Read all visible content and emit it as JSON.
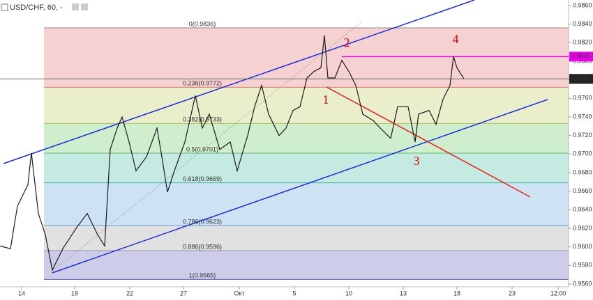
{
  "chart_data": {
    "type": "line",
    "title": "USD/CHF, 60, -",
    "x": [
      0,
      15,
      25,
      40,
      45,
      55,
      65,
      75,
      90,
      110,
      125,
      140,
      150,
      158,
      168,
      175,
      185,
      195,
      210,
      225,
      232,
      240,
      250,
      265,
      280,
      290,
      300,
      315,
      330,
      340,
      355,
      365,
      375,
      385,
      400,
      410,
      420,
      430,
      440,
      450,
      460,
      465,
      470,
      480,
      490,
      500,
      510,
      520,
      535,
      545,
      560,
      570,
      585,
      595,
      600,
      615,
      625,
      635,
      645,
      650,
      655,
      665
    ],
    "series": [
      {
        "name": "USD/CHF",
        "color": "#1a1a1a",
        "values": [
          0.9601,
          0.9598,
          0.9644,
          0.9667,
          0.9701,
          0.9636,
          0.9613,
          0.9575,
          0.9598,
          0.9621,
          0.9636,
          0.9613,
          0.9601,
          0.9705,
          0.9728,
          0.974,
          0.9713,
          0.9682,
          0.9697,
          0.9728,
          0.9697,
          0.9659,
          0.9682,
          0.9713,
          0.9763,
          0.9728,
          0.9743,
          0.9705,
          0.9713,
          0.9682,
          0.972,
          0.9751,
          0.9774,
          0.9743,
          0.972,
          0.9728,
          0.9747,
          0.9751,
          0.9782,
          0.9789,
          0.9793,
          0.9828,
          0.9782,
          0.9782,
          0.9801,
          0.9789,
          0.9774,
          0.9743,
          0.9736,
          0.9728,
          0.9717,
          0.9751,
          0.9751,
          0.9713,
          0.9743,
          0.9747,
          0.9732,
          0.9759,
          0.9774,
          0.9805,
          0.9793,
          0.9781
        ]
      }
    ],
    "xlim": [
      0,
      815
    ],
    "xticks": [
      {
        "value": 31,
        "label": "14"
      },
      {
        "value": 107,
        "label": "19"
      },
      {
        "value": 186,
        "label": "22"
      },
      {
        "value": 263,
        "label": "27"
      },
      {
        "value": 343,
        "label": "Окт"
      },
      {
        "value": 422,
        "label": "5"
      },
      {
        "value": 500,
        "label": "10"
      },
      {
        "value": 578,
        "label": "13"
      },
      {
        "value": 655,
        "label": "18"
      },
      {
        "value": 734,
        "label": "23"
      },
      {
        "value": 800,
        "label": "12:00"
      }
    ],
    "ylim": [
      0.9557,
      0.9866
    ],
    "yticks": [
      {
        "value": 0.956,
        "label": "0.9560"
      },
      {
        "value": 0.958,
        "label": "0.9580"
      },
      {
        "value": 0.96,
        "label": "0.9600"
      },
      {
        "value": 0.962,
        "label": "0.9620"
      },
      {
        "value": 0.964,
        "label": "0.9640"
      },
      {
        "value": 0.966,
        "label": "0.9660"
      },
      {
        "value": 0.968,
        "label": "0.9680"
      },
      {
        "value": 0.97,
        "label": "0.9700"
      },
      {
        "value": 0.972,
        "label": "0.9720"
      },
      {
        "value": 0.974,
        "label": "0.9740"
      },
      {
        "value": 0.976,
        "label": "0.9760"
      },
      {
        "value": 0.978,
        "label": "0.9780"
      },
      {
        "value": 0.98,
        "label": "0.9800"
      },
      {
        "value": 0.982,
        "label": "0.9820"
      },
      {
        "value": 0.984,
        "label": "0.9840"
      },
      {
        "value": 0.986,
        "label": "0.9860"
      }
    ],
    "fib_levels": [
      {
        "value": 0.9836,
        "label": "0(0.9836)",
        "color": "#888888"
      },
      {
        "value": 0.9772,
        "label": "0.236(0.9772)",
        "color": "#e06666"
      },
      {
        "value": 0.9733,
        "label": "0.382(0.9733)",
        "color": "#b8c850"
      },
      {
        "value": 0.9701,
        "label": "0.5(0.9701)",
        "color": "#5cc85c"
      },
      {
        "value": 0.9669,
        "label": "0.618(0.9669)",
        "color": "#3ab89a"
      },
      {
        "value": 0.9623,
        "label": "0.786(0.9623)",
        "color": "#5aa0d8"
      },
      {
        "value": 0.9596,
        "label": "0.886(0.9596)",
        "color": "#9a9a9a"
      },
      {
        "value": 0.9565,
        "label": "1(0.9565)",
        "color": "#5a5ab8"
      }
    ],
    "marker_price": 0.9805,
    "marker_color": "#ee00ee",
    "last_price": 0.9781,
    "annotations": [
      "1",
      "2",
      "3",
      "4"
    ]
  }
}
